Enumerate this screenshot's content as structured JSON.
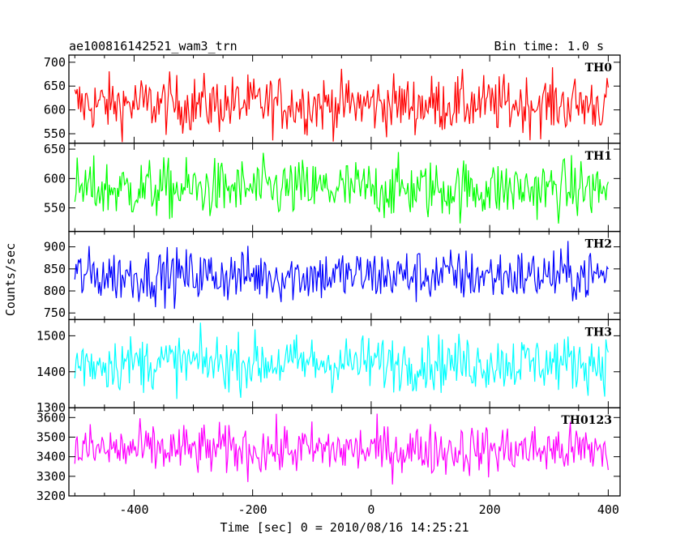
{
  "header": {
    "left": "ae100816142521_wam3_trn",
    "right": "Bin time: 1.0 s"
  },
  "chart_data": {
    "type": "line",
    "xlabel": "Time [sec] 0 = 2010/08/16 14:25:21",
    "ylabel": "Counts/sec",
    "xlim": [
      -510,
      420
    ],
    "x_ticks": [
      "-400",
      "-200",
      "0",
      "200",
      "400"
    ],
    "x_tick_values": [
      -400,
      -200,
      0,
      200,
      400
    ],
    "bin_time_s": 1.0,
    "x_range": [
      -500,
      400
    ],
    "panels": [
      {
        "name": "TH0",
        "color": "#ff0000",
        "ylim": [
          530,
          715
        ],
        "yticks": [
          550,
          600,
          650,
          700
        ],
        "mean": 612,
        "spread": 30
      },
      {
        "name": "TH1",
        "color": "#00ff00",
        "ylim": [
          510,
          660
        ],
        "yticks": [
          550,
          600,
          650
        ],
        "mean": 582,
        "spread": 25
      },
      {
        "name": "TH2",
        "color": "#0000ff",
        "ylim": [
          735,
          935
        ],
        "yticks": [
          750,
          800,
          850,
          900
        ],
        "mean": 835,
        "spread": 30
      },
      {
        "name": "TH3",
        "color": "#00ffff",
        "ylim": [
          1300,
          1545
        ],
        "yticks": [
          1300,
          1400,
          1500
        ],
        "mean": 1425,
        "spread": 38
      },
      {
        "name": "TH0123",
        "color": "#ff00ff",
        "ylim": [
          3200,
          3650
        ],
        "yticks": [
          3200,
          3300,
          3400,
          3500,
          3600
        ],
        "mean": 3435,
        "spread": 65
      }
    ]
  }
}
